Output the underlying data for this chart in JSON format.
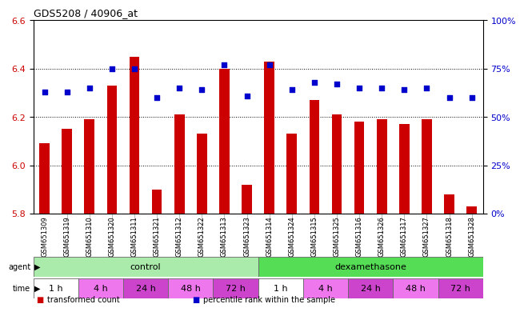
{
  "title": "GDS5208 / 40906_at",
  "samples": [
    "GSM651309",
    "GSM651319",
    "GSM651310",
    "GSM651320",
    "GSM651311",
    "GSM651321",
    "GSM651312",
    "GSM651322",
    "GSM651313",
    "GSM651323",
    "GSM651314",
    "GSM651324",
    "GSM651315",
    "GSM651325",
    "GSM651316",
    "GSM651326",
    "GSM651317",
    "GSM651327",
    "GSM651318",
    "GSM651328"
  ],
  "transformed_counts": [
    6.09,
    6.15,
    6.19,
    6.33,
    6.45,
    5.9,
    6.21,
    6.13,
    6.4,
    5.92,
    6.43,
    6.13,
    6.27,
    6.21,
    6.18,
    6.19,
    6.17,
    6.19,
    5.88,
    5.83
  ],
  "percentile_ranks": [
    63,
    63,
    65,
    75,
    75,
    60,
    65,
    64,
    77,
    61,
    77,
    64,
    68,
    67,
    65,
    65,
    64,
    65,
    60,
    60
  ],
  "ylim_left": [
    5.8,
    6.6
  ],
  "ylim_right": [
    0,
    100
  ],
  "yticks_left": [
    5.8,
    6.0,
    6.2,
    6.4,
    6.6
  ],
  "yticks_right": [
    0,
    25,
    50,
    75,
    100
  ],
  "bar_color": "#cc0000",
  "dot_color": "#0000cc",
  "bar_bottom": 5.8,
  "agent_groups": [
    {
      "label": "control",
      "start": 0,
      "end": 10,
      "color": "#aaeaaa"
    },
    {
      "label": "dexamethasone",
      "start": 10,
      "end": 20,
      "color": "#55dd55"
    }
  ],
  "time_groups": [
    {
      "label": "1 h",
      "start": 0,
      "end": 2,
      "color": "#ffffff"
    },
    {
      "label": "4 h",
      "start": 2,
      "end": 4,
      "color": "#ee77ee"
    },
    {
      "label": "24 h",
      "start": 4,
      "end": 6,
      "color": "#cc44cc"
    },
    {
      "label": "48 h",
      "start": 6,
      "end": 8,
      "color": "#ee77ee"
    },
    {
      "label": "72 h",
      "start": 8,
      "end": 10,
      "color": "#cc44cc"
    },
    {
      "label": "1 h",
      "start": 10,
      "end": 12,
      "color": "#ffffff"
    },
    {
      "label": "4 h",
      "start": 12,
      "end": 14,
      "color": "#ee77ee"
    },
    {
      "label": "24 h",
      "start": 14,
      "end": 16,
      "color": "#cc44cc"
    },
    {
      "label": "48 h",
      "start": 16,
      "end": 18,
      "color": "#ee77ee"
    },
    {
      "label": "72 h",
      "start": 18,
      "end": 20,
      "color": "#cc44cc"
    }
  ],
  "legend_items": [
    {
      "label": "transformed count",
      "color": "#cc0000"
    },
    {
      "label": "percentile rank within the sample",
      "color": "#0000cc"
    }
  ],
  "xtick_bg_color": "#cccccc",
  "agent_label_color": "#000000",
  "time_label_color": "#000000"
}
